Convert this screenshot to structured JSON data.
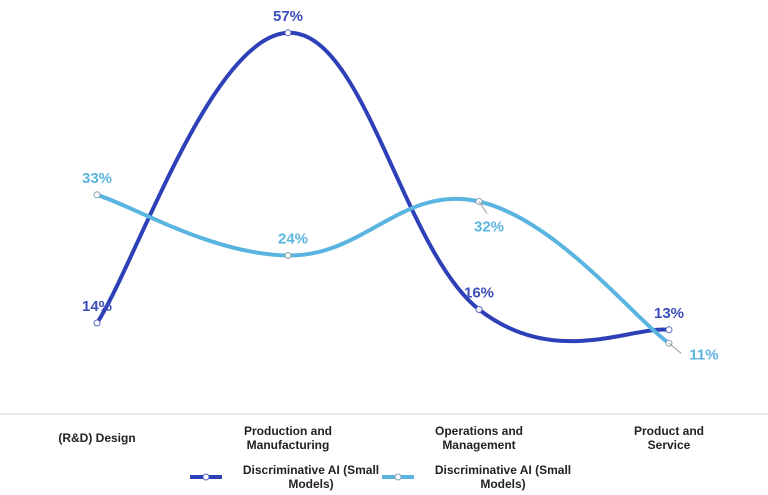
{
  "chart_data": {
    "type": "line",
    "title": "",
    "xlabel": "",
    "ylabel": "",
    "categories": [
      "(R&D) Design",
      "Production and Manufacturing",
      "Operations and Management",
      "Product and Service"
    ],
    "series": [
      {
        "name": "Discriminative AI (Small Models)",
        "values": [
          14,
          57,
          16,
          13
        ],
        "labels": [
          "14%",
          "57%",
          "16%",
          "13%"
        ],
        "color": "#2e40b8",
        "label_color": "#3b4db8"
      },
      {
        "name": "Discriminative AI (Small Models)",
        "values": [
          33,
          24,
          32,
          11
        ],
        "labels": [
          "33%",
          "24%",
          "32%",
          "11%"
        ],
        "color": "#5ab4e0",
        "label_color": "#5ab4e0"
      }
    ],
    "smooth": true,
    "markers": "hollow-circle",
    "grid": false,
    "legend_position": "bottom"
  }
}
